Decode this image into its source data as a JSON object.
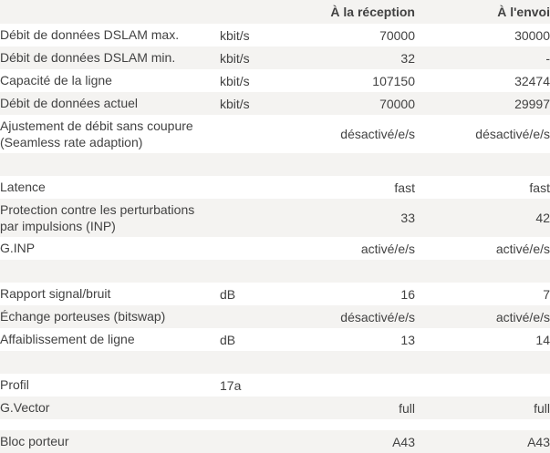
{
  "colors": {
    "stripe": "#f4f3f1",
    "text": "#424242",
    "background": "#ffffff"
  },
  "table": {
    "header": {
      "label": "",
      "unit": "",
      "reception": "À la réception",
      "envoi": "À l'envoi"
    },
    "rows": [
      {
        "type": "row",
        "label": "Débit de données DSLAM max.",
        "unit": "kbit/s",
        "reception": "70000",
        "envoi": "30000"
      },
      {
        "type": "row",
        "label": "Débit de données DSLAM min.",
        "unit": "kbit/s",
        "reception": "32",
        "envoi": "-"
      },
      {
        "type": "row",
        "label": "Capacité de la ligne",
        "unit": "kbit/s",
        "reception": "107150",
        "envoi": "32474"
      },
      {
        "type": "row",
        "label": "Débit de données actuel",
        "unit": "kbit/s",
        "reception": "70000",
        "envoi": "29997"
      },
      {
        "type": "row2",
        "label": "Ajustement de débit sans coupure\n(Seamless rate adaption)",
        "unit": "",
        "reception": "désactivé/e/s",
        "envoi": "désactivé/e/s"
      },
      {
        "type": "spacer",
        "label": "",
        "unit": "",
        "reception": "",
        "envoi": ""
      },
      {
        "type": "row",
        "label": "Latence",
        "unit": "",
        "reception": "fast",
        "envoi": "fast"
      },
      {
        "type": "row2",
        "label": "Protection contre les perturbations\npar impulsions (INP)",
        "unit": "",
        "reception": "33",
        "envoi": "42"
      },
      {
        "type": "row",
        "label": "G.INP",
        "unit": "",
        "reception": "activé/e/s",
        "envoi": "activé/e/s"
      },
      {
        "type": "spacer",
        "label": "",
        "unit": "",
        "reception": "",
        "envoi": ""
      },
      {
        "type": "row",
        "label": "Rapport signal/bruit",
        "unit": "dB",
        "reception": "16",
        "envoi": "7"
      },
      {
        "type": "row",
        "label": "Échange porteuses (bitswap)",
        "unit": "",
        "reception": "désactivé/e/s",
        "envoi": "activé/e/s"
      },
      {
        "type": "row",
        "label": "Affaiblissement de ligne",
        "unit": "dB",
        "reception": "13",
        "envoi": "14"
      },
      {
        "type": "spacer",
        "label": "",
        "unit": "",
        "reception": "",
        "envoi": ""
      },
      {
        "type": "row",
        "label": "Profil",
        "unit": "17a",
        "reception": "",
        "envoi": ""
      },
      {
        "type": "row",
        "label": "G.Vector",
        "unit": "",
        "reception": "full",
        "envoi": "full"
      },
      {
        "type": "spacer-sm",
        "label": "",
        "unit": "",
        "reception": "",
        "envoi": ""
      },
      {
        "type": "row",
        "label": "Bloc porteur",
        "unit": "",
        "reception": "A43",
        "envoi": "A43"
      }
    ]
  }
}
